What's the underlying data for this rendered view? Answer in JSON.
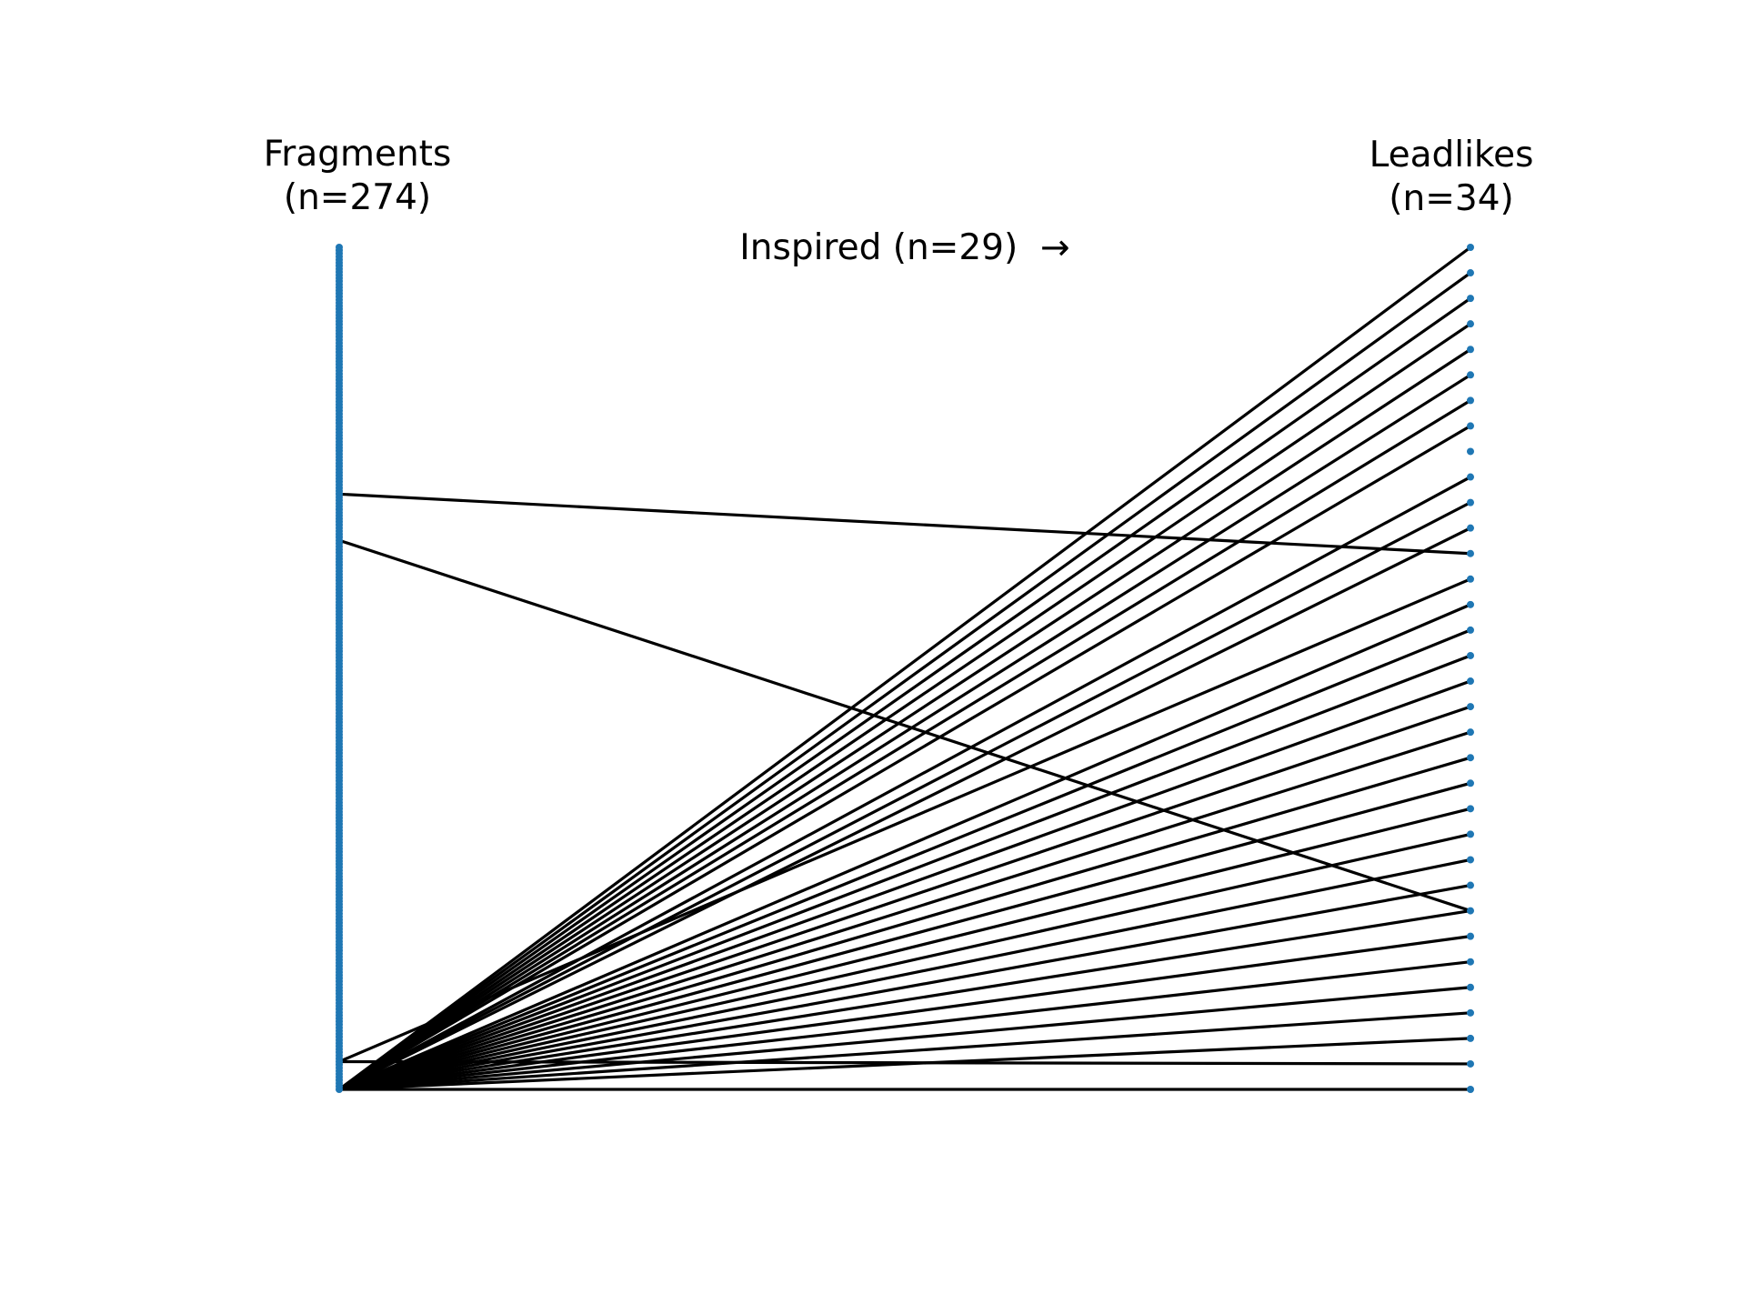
{
  "chart_data": {
    "type": "bipartite",
    "left_axis": {
      "label_line1": "Fragments",
      "label_line2": "(n=274)",
      "count": 274
    },
    "right_axis": {
      "label_line1": "Leadlikes",
      "label_line2": "(n=34)",
      "count": 34
    },
    "annotation": "Inspired (n=29)  →",
    "links": [
      {
        "from": 0,
        "to": 0
      },
      {
        "from": 0,
        "to": 2
      },
      {
        "from": 0,
        "to": 3
      },
      {
        "from": 0,
        "to": 4
      },
      {
        "from": 0,
        "to": 5
      },
      {
        "from": 0,
        "to": 6
      },
      {
        "from": 0,
        "to": 7
      },
      {
        "from": 0,
        "to": 8
      },
      {
        "from": 0,
        "to": 9
      },
      {
        "from": 0,
        "to": 10
      },
      {
        "from": 0,
        "to": 11
      },
      {
        "from": 0,
        "to": 12
      },
      {
        "from": 0,
        "to": 13
      },
      {
        "from": 0,
        "to": 14
      },
      {
        "from": 0,
        "to": 15
      },
      {
        "from": 0,
        "to": 16
      },
      {
        "from": 0,
        "to": 17
      },
      {
        "from": 0,
        "to": 18
      },
      {
        "from": 0,
        "to": 19
      },
      {
        "from": 0,
        "to": 22
      },
      {
        "from": 0,
        "to": 23
      },
      {
        "from": 0,
        "to": 24
      },
      {
        "from": 0,
        "to": 26
      },
      {
        "from": 0,
        "to": 27
      },
      {
        "from": 0,
        "to": 28
      },
      {
        "from": 0,
        "to": 29
      },
      {
        "from": 0,
        "to": 30
      },
      {
        "from": 0,
        "to": 31
      },
      {
        "from": 0,
        "to": 32
      },
      {
        "from": 0,
        "to": 33
      },
      {
        "from": 9,
        "to": 1
      },
      {
        "from": 9,
        "to": 20
      },
      {
        "from": 178,
        "to": 7
      },
      {
        "from": 193,
        "to": 21
      }
    ],
    "colors": {
      "axis_points": "#1f77b4",
      "links": "#000000"
    }
  }
}
